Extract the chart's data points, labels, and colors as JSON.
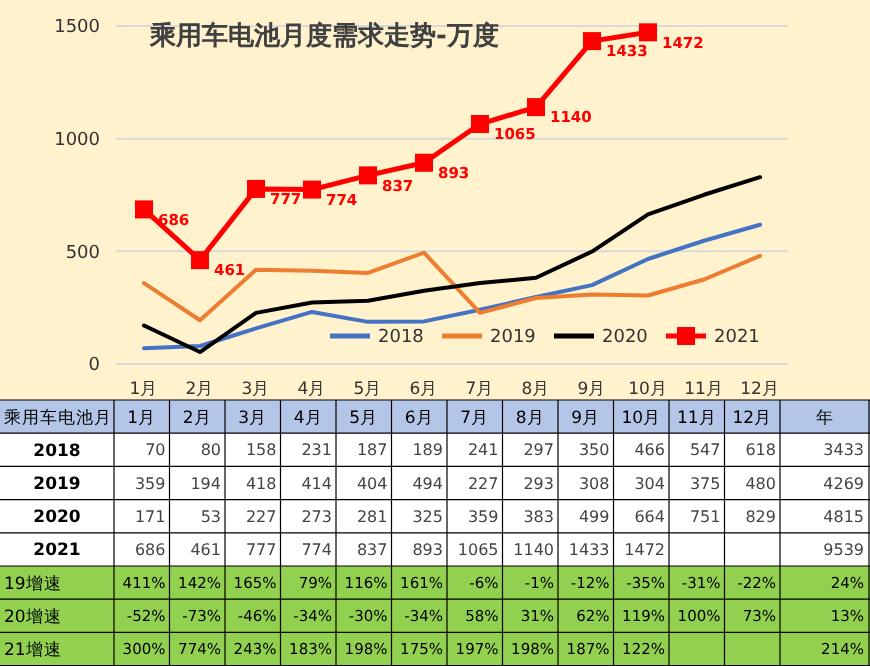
{
  "chart_data": {
    "type": "line",
    "title": "乘用车电池月度需求走势-万度",
    "categories": [
      "1月",
      "2月",
      "3月",
      "4月",
      "5月",
      "6月",
      "7月",
      "8月",
      "9月",
      "10月",
      "11月",
      "12月"
    ],
    "series": [
      {
        "name": "2018",
        "color": "#4472c4",
        "marker": "none",
        "values": [
          70,
          80,
          158,
          231,
          187,
          189,
          241,
          297,
          350,
          466,
          547,
          618
        ]
      },
      {
        "name": "2019",
        "color": "#ed7d31",
        "marker": "none",
        "values": [
          359,
          194,
          418,
          414,
          404,
          494,
          227,
          293,
          308,
          304,
          375,
          480
        ]
      },
      {
        "name": "2020",
        "color": "#000000",
        "marker": "none",
        "values": [
          171,
          53,
          227,
          273,
          281,
          325,
          359,
          383,
          499,
          664,
          751,
          829
        ]
      },
      {
        "name": "2021",
        "color": "#ff0000",
        "marker": "square",
        "values": [
          686,
          461,
          777,
          774,
          837,
          893,
          1065,
          1140,
          1433,
          1472,
          null,
          null
        ]
      }
    ],
    "ylim": [
      0,
      1500
    ],
    "yticks": [
      0,
      500,
      1000,
      1500
    ],
    "grid": "y",
    "legend": "bottom",
    "data_labels": true,
    "annotations": [
      {
        "text": "686",
        "x": "1月",
        "y": 686
      },
      {
        "text": "461",
        "x": "2月",
        "y": 461
      },
      {
        "text": "777",
        "x": "3月",
        "y": 777
      },
      {
        "text": "774",
        "x": "4月",
        "y": 774
      },
      {
        "text": "837",
        "x": "5月",
        "y": 837
      },
      {
        "text": "893",
        "x": "6月",
        "y": 893
      },
      {
        "text": "1065",
        "x": "7月",
        "y": 1065
      },
      {
        "text": "1140",
        "x": "8月",
        "y": 1140
      },
      {
        "text": "1433",
        "x": "9月",
        "y": 1433
      },
      {
        "text": "1472",
        "x": "10月",
        "y": 1472
      },
      "乘用车电池月",
      "年",
      "3433",
      "4269",
      "4815",
      "9539",
      "19增速",
      "411%",
      "142%",
      "165%",
      "79%",
      "116%",
      "161%",
      "-6%",
      "-1%",
      "-12%",
      "-35%",
      "-31%",
      "-22%",
      "24%",
      "20增速",
      "-52%",
      "-73%",
      "-46%",
      "-34%",
      "-30%",
      "-34%",
      "58%",
      "31%",
      "62%",
      "119%",
      "100%",
      "73%",
      "13%",
      "21增速",
      "300%",
      "774%",
      "243%",
      "183%",
      "198%",
      "175%",
      "197%",
      "198%",
      "187%",
      "122%",
      "214%"
    ]
  }
}
